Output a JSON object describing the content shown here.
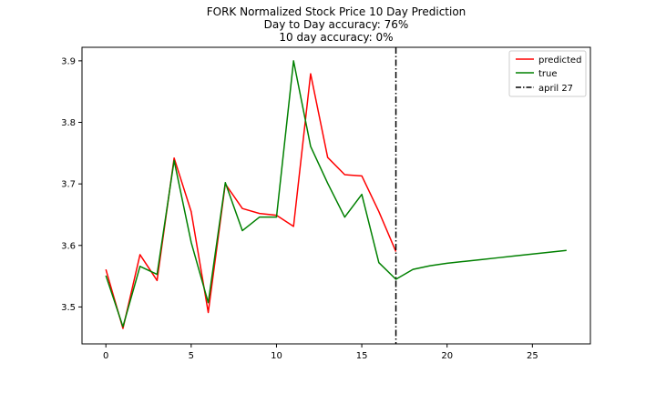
{
  "chart_data": {
    "type": "line",
    "title_lines": [
      "FORK Normalized Stock Price 10 Day Prediction",
      "Day to Day accuracy: 76%",
      "10 day accuracy: 0%"
    ],
    "xlabel": "",
    "ylabel": "",
    "xlim": [
      -1.4,
      28.4
    ],
    "ylim": [
      3.44,
      3.922
    ],
    "xticks": [
      0,
      5,
      10,
      15,
      20,
      25
    ],
    "yticks": [
      3.5,
      3.6,
      3.7,
      3.8,
      3.9
    ],
    "grid": false,
    "legend_placement": "top-right",
    "series": [
      {
        "name": "predicted",
        "color": "#ff0000",
        "x": [
          0,
          1,
          2,
          3,
          4,
          5,
          6,
          7,
          8,
          9,
          10,
          11,
          12,
          13,
          14,
          15,
          16,
          17
        ],
        "y": [
          3.561,
          3.465,
          3.585,
          3.543,
          3.742,
          3.655,
          3.491,
          3.7,
          3.66,
          3.652,
          3.649,
          3.631,
          3.879,
          3.743,
          3.715,
          3.713,
          3.655,
          3.59
        ]
      },
      {
        "name": "true",
        "color": "#008000",
        "x": [
          0,
          1,
          2,
          3,
          4,
          5,
          6,
          7,
          8,
          9,
          10,
          11,
          12,
          13,
          14,
          15,
          16,
          17,
          18,
          19,
          20,
          21,
          22,
          23,
          24,
          25,
          26,
          27
        ],
        "y": [
          3.551,
          3.468,
          3.566,
          3.553,
          3.738,
          3.605,
          3.507,
          3.702,
          3.624,
          3.646,
          3.646,
          3.9,
          3.761,
          3.701,
          3.646,
          3.683,
          3.572,
          3.545,
          3.561,
          3.567,
          3.571,
          3.574,
          3.577,
          3.58,
          3.583,
          3.586,
          3.589,
          3.592
        ]
      }
    ],
    "vline": {
      "name": "april 27",
      "x": 17,
      "color": "#000000",
      "style": "dashdot"
    }
  }
}
